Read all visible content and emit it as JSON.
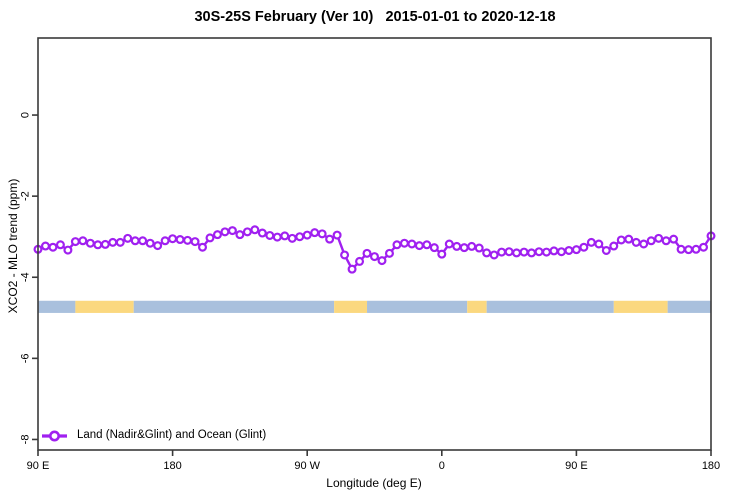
{
  "title": "30S-25S February (Ver 10)   2015-01-01 to 2020-12-18",
  "legend": {
    "label": "Land (Nadir&Glint) and Ocean (Glint)",
    "position": "bottom-left"
  },
  "chart_data": {
    "type": "line",
    "title": "30S-25S February (Ver 10)   2015-01-01 to 2020-12-18",
    "xlabel": "Longitude (deg E)",
    "ylabel": "XCO2 - MLO trend (ppm)",
    "xlim": [
      90,
      540
    ],
    "ylim": [
      -8.26,
      1.9
    ],
    "grid": false,
    "x_ticks": [
      {
        "value": 90,
        "label": "90 E"
      },
      {
        "value": 180,
        "label": "180"
      },
      {
        "value": 270,
        "label": "90 W"
      },
      {
        "value": 360,
        "label": "0"
      },
      {
        "value": 450,
        "label": "90 E"
      },
      {
        "value": 540,
        "label": "180"
      }
    ],
    "y_ticks": [
      {
        "value": 0,
        "label": "0"
      },
      {
        "value": -2,
        "label": "-2"
      },
      {
        "value": -4,
        "label": "-4"
      },
      {
        "value": -6,
        "label": "-6"
      },
      {
        "value": -8,
        "label": "-8"
      }
    ],
    "series": [
      {
        "name": "Land (Nadir&Glint) and Ocean (Glint)",
        "color": "#A020F0",
        "marker": "open-circle",
        "x_deg_east": [
          90,
          95,
          100,
          105,
          110,
          115,
          120,
          125,
          130,
          135,
          140,
          145,
          150,
          155,
          160,
          165,
          170,
          175,
          180,
          185,
          190,
          195,
          200,
          205,
          210,
          215,
          220,
          225,
          230,
          235,
          240,
          245,
          250,
          255,
          260,
          265,
          270,
          275,
          280,
          285,
          290,
          295,
          300,
          305,
          310,
          315,
          320,
          325,
          330,
          335,
          340,
          345,
          350,
          355,
          360,
          365,
          370,
          375,
          380,
          385,
          390,
          395,
          400,
          405,
          410,
          415,
          420,
          425,
          430,
          435,
          440,
          445,
          450,
          455,
          460,
          465,
          470,
          475,
          480,
          485,
          490,
          495,
          500,
          505,
          510,
          515,
          520,
          525,
          530,
          535,
          540
        ],
        "values": [
          -3.31,
          -3.23,
          -3.26,
          -3.2,
          -3.33,
          -3.12,
          -3.1,
          -3.16,
          -3.2,
          -3.19,
          -3.14,
          -3.14,
          -3.04,
          -3.1,
          -3.1,
          -3.16,
          -3.22,
          -3.1,
          -3.05,
          -3.07,
          -3.09,
          -3.12,
          -3.26,
          -3.03,
          -2.95,
          -2.88,
          -2.85,
          -2.95,
          -2.88,
          -2.83,
          -2.91,
          -2.97,
          -3.01,
          -2.98,
          -3.04,
          -3.0,
          -2.96,
          -2.9,
          -2.93,
          -3.06,
          -2.96,
          -3.45,
          -3.8,
          -3.61,
          -3.41,
          -3.49,
          -3.59,
          -3.41,
          -3.2,
          -3.16,
          -3.18,
          -3.22,
          -3.2,
          -3.27,
          -3.43,
          -3.18,
          -3.24,
          -3.27,
          -3.24,
          -3.28,
          -3.4,
          -3.45,
          -3.38,
          -3.37,
          -3.4,
          -3.38,
          -3.4,
          -3.37,
          -3.38,
          -3.35,
          -3.37,
          -3.34,
          -3.32,
          -3.26,
          -3.14,
          -3.18,
          -3.34,
          -3.23,
          -3.08,
          -3.06,
          -3.14,
          -3.18,
          -3.1,
          -3.04,
          -3.1,
          -3.06,
          -3.31,
          -3.32,
          -3.31,
          -3.26,
          -2.98
        ]
      }
    ],
    "surface_type_bar": {
      "y_top": -4.58,
      "y_bottom": -4.88,
      "colors": {
        "ocean": "#A9C0DD",
        "land": "#FBD87F"
      },
      "segments": [
        {
          "from": 90,
          "to": 115,
          "type": "ocean"
        },
        {
          "from": 115,
          "to": 154,
          "type": "land"
        },
        {
          "from": 154,
          "to": 288,
          "type": "ocean"
        },
        {
          "from": 288,
          "to": 310,
          "type": "land"
        },
        {
          "from": 310,
          "to": 377,
          "type": "ocean"
        },
        {
          "from": 377,
          "to": 390,
          "type": "land"
        },
        {
          "from": 390,
          "to": 475,
          "type": "ocean"
        },
        {
          "from": 475,
          "to": 511,
          "type": "land"
        },
        {
          "from": 511,
          "to": 540,
          "type": "ocean"
        }
      ]
    }
  }
}
